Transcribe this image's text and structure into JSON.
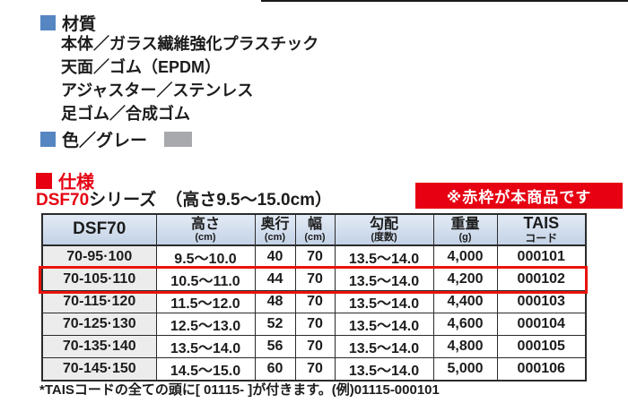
{
  "materials": {
    "title": "材質",
    "items": [
      "本体／ガラス繊維強化プラスチック",
      "天面／ゴム（EPDM）",
      "アジャスター／ステンレス",
      "足ゴム／合成ゴム"
    ]
  },
  "color": {
    "label": "色／グレー",
    "swatch_hex": "#a7a9ac"
  },
  "spec": {
    "title": "仕様",
    "series_name": "DSF70",
    "series_suffix": "シリーズ",
    "series_range": "（高さ9.5～15.0cm）",
    "badge": "※赤枠が本商品です"
  },
  "table": {
    "columns": [
      {
        "label": "DSF70",
        "unit": ""
      },
      {
        "label": "高さ",
        "unit": "(cm)"
      },
      {
        "label": "奥行",
        "unit": "(cm)"
      },
      {
        "label": "幅",
        "unit": "(cm)"
      },
      {
        "label": "勾配",
        "unit": "(度数)"
      },
      {
        "label": "重量",
        "unit": "(g)"
      },
      {
        "label": "TAIS",
        "unit": "コード"
      }
    ],
    "rows": [
      [
        "70-95·100",
        "9.5～10.0",
        "40",
        "70",
        "13.5～14.0",
        "4,000",
        "000101"
      ],
      [
        "70-105·110",
        "10.5～11.0",
        "44",
        "70",
        "13.5～14.0",
        "4,200",
        "000102"
      ],
      [
        "70-115·120",
        "11.5～12.0",
        "48",
        "70",
        "13.5～14.0",
        "4,400",
        "000103"
      ],
      [
        "70-125·130",
        "12.5～13.0",
        "52",
        "70",
        "13.5～14.0",
        "4,600",
        "000104"
      ],
      [
        "70-135·140",
        "13.5～14.0",
        "56",
        "70",
        "13.5～14.0",
        "4,800",
        "000105"
      ],
      [
        "70-145·150",
        "14.5～15.0",
        "60",
        "70",
        "13.5～14.0",
        "5,000",
        "000106"
      ]
    ],
    "highlighted_row_index": 1
  },
  "footer": {
    "note": "*TAISコードの全ての頭に[ 01115- ]が付きます。(例)01115-000101"
  },
  "colors": {
    "accent_red": "#e60012",
    "bullet_blue": "#5586c1",
    "swatch_gray": "#a7a9ac",
    "header_bg_top": "#e3ebf5",
    "header_bg_bottom": "#c3d2e6",
    "row_label_bg": "#ececec",
    "border_dark": "#2b2b2b",
    "highlight_red": "#ea130b"
  }
}
